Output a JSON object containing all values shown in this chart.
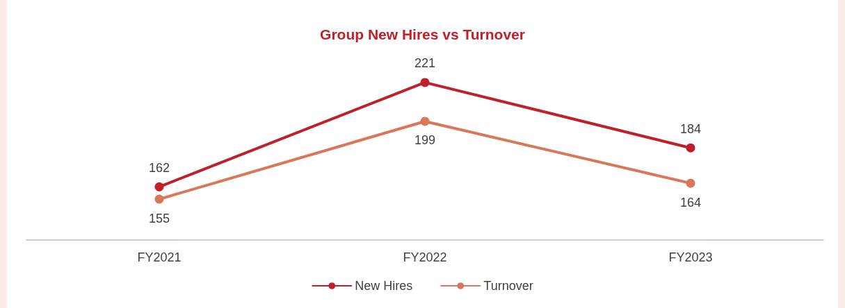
{
  "chart_data": {
    "type": "line",
    "title": "Group New Hires vs Turnover",
    "categories": [
      "FY2021",
      "FY2022",
      "FY2023"
    ],
    "series": [
      {
        "name": "New Hires",
        "color": "#c0202a",
        "values": [
          162,
          221,
          184
        ]
      },
      {
        "name": "Turnover",
        "color": "#d9775a",
        "values": [
          155,
          199,
          164
        ]
      }
    ],
    "data_labels": true,
    "marker": "circle",
    "line_style": "solid",
    "legend": "bottom"
  }
}
